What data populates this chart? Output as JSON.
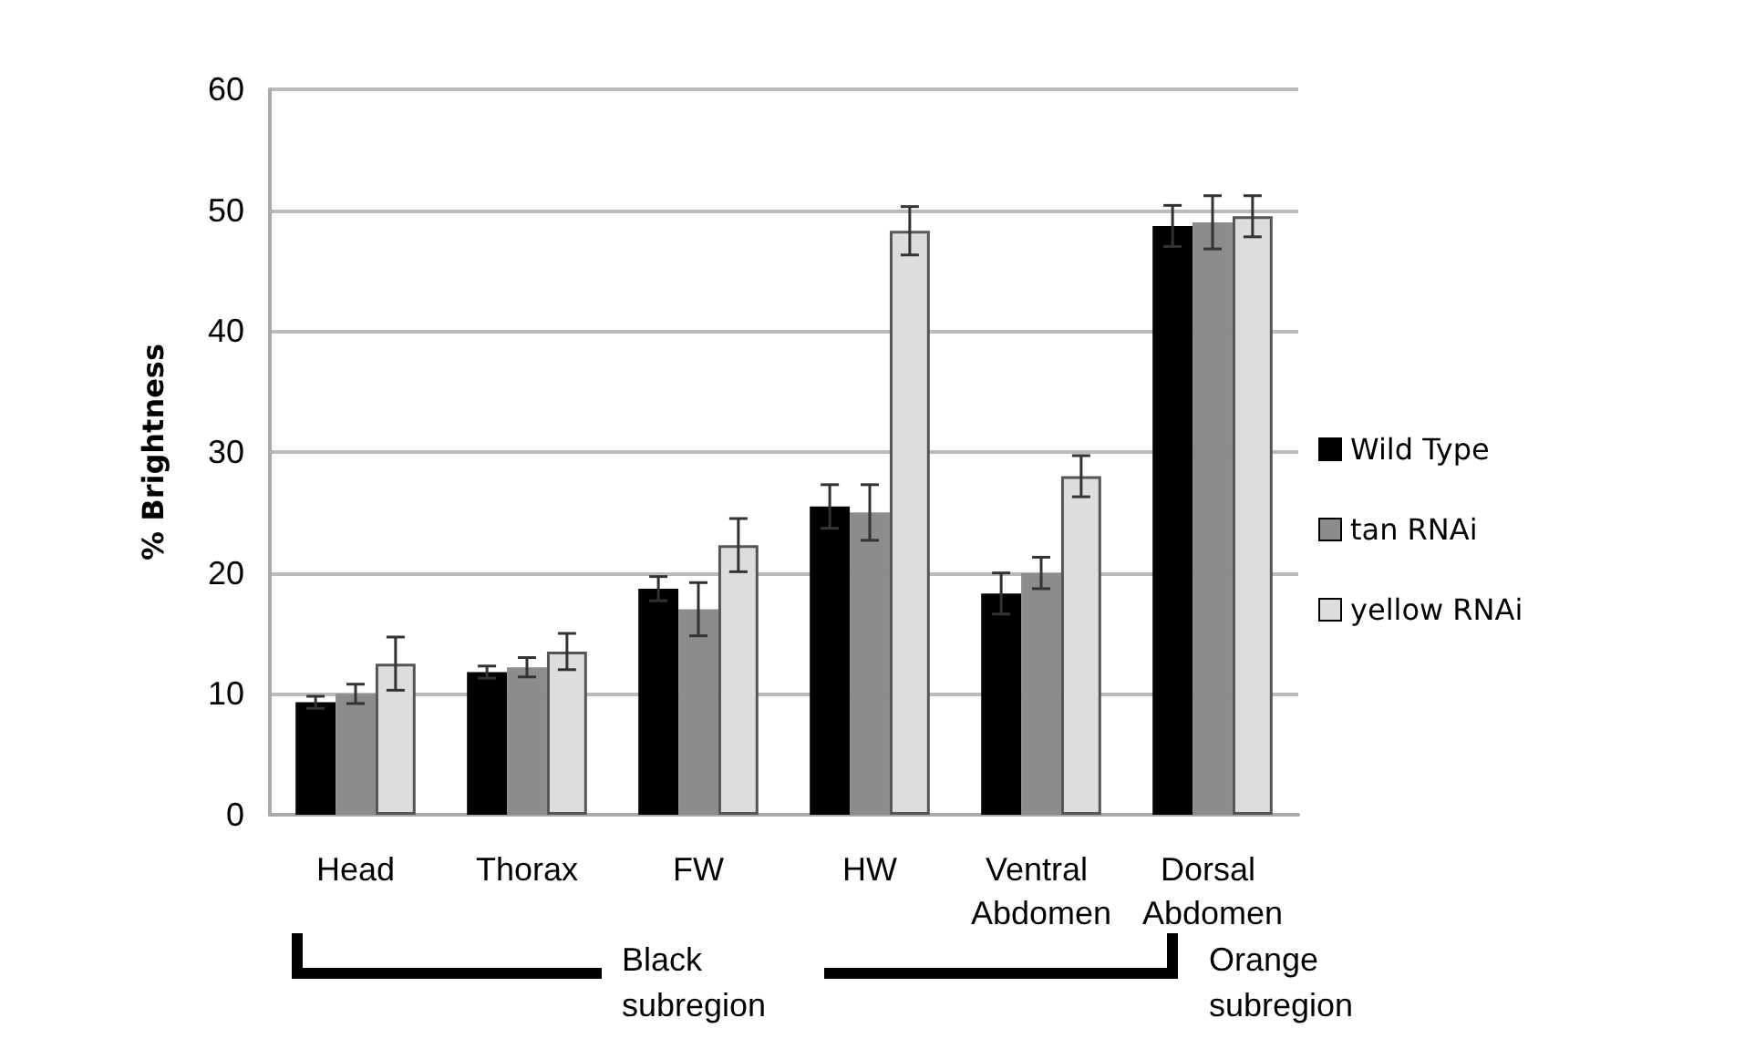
{
  "chart_data": {
    "type": "bar",
    "ylabel": "% Brightness",
    "categories": [
      "Head",
      "Thorax",
      "FW",
      "HW",
      "Ventral Abdomen",
      "Dorsal Abdomen"
    ],
    "series": [
      {
        "name": "Wild Type",
        "color": "#000000",
        "values": [
          9.3,
          11.8,
          18.7,
          25.5,
          18.3,
          48.7
        ],
        "errors": [
          0.5,
          0.5,
          1,
          1.8,
          1.7,
          1.7
        ]
      },
      {
        "name": "tan RNAi",
        "color": "#8c8c8c",
        "values": [
          10,
          12.2,
          17,
          25,
          20,
          49
        ],
        "errors": [
          0.8,
          0.8,
          2.2,
          2.3,
          1.3,
          2.2
        ]
      },
      {
        "name": "yellow RNAi",
        "color": "#dddddd",
        "values": [
          12.5,
          13.5,
          22.3,
          48.3,
          28,
          49.5
        ],
        "errors": [
          2.2,
          1.5,
          2.2,
          2,
          1.7,
          1.7
        ]
      }
    ],
    "ylim": [
      0,
      60
    ],
    "yticks": [
      0,
      10,
      20,
      30,
      40,
      50,
      60
    ],
    "grid": "y",
    "legend": "right",
    "annotations": [
      "Black subregion",
      "Orange subregion"
    ]
  }
}
